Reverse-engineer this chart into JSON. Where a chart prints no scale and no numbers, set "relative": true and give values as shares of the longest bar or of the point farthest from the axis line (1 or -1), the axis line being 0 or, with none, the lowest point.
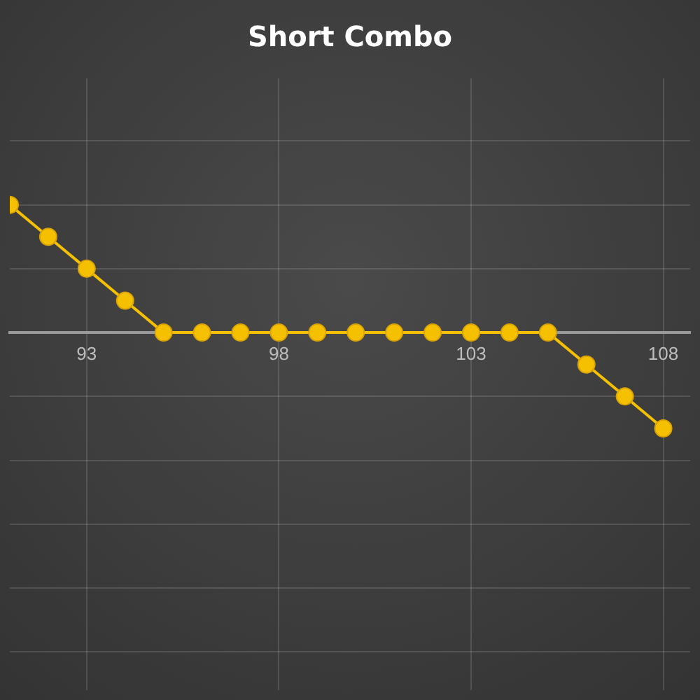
{
  "chart_data": {
    "type": "line",
    "title": "Short Combo",
    "relative": true,
    "x": [
      91,
      92,
      93,
      94,
      95,
      96,
      97,
      98,
      99,
      100,
      101,
      102,
      103,
      104,
      105,
      106,
      107,
      108
    ],
    "series": [
      {
        "color": "#f5c000",
        "values": [
          1,
          0.75,
          0.5,
          0.25,
          0,
          0,
          0,
          0,
          0,
          0,
          0,
          0,
          0,
          0,
          0,
          -0.25,
          -0.5,
          -0.75
        ]
      }
    ],
    "xlim": [
      91,
      108.7
    ],
    "xticks": [
      93,
      98,
      103,
      108
    ],
    "grid": true,
    "legend": false,
    "tick_labels": "x",
    "marker": "circle",
    "line_style": "solid"
  }
}
